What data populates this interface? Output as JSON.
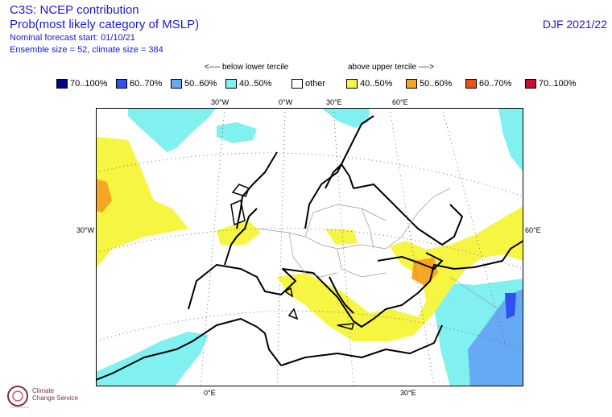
{
  "header": {
    "title_line1": "C3S: NCEP contribution",
    "title_line2": "Prob(most likely category of MSLP)",
    "forecast_start": "Nominal forecast start: 01/10/21",
    "ensemble": "Ensemble size = 52, climate size = 384",
    "season": "DJF 2021/22"
  },
  "tercile_labels": {
    "below": "<---- below lower tercile",
    "above": "above upper tercile ---->"
  },
  "legend": [
    {
      "label": "70..100%",
      "color": "#00008b"
    },
    {
      "label": "60..70%",
      "color": "#3050f0"
    },
    {
      "label": "50..60%",
      "color": "#66aaf5"
    },
    {
      "label": "40..50%",
      "color": "#80f0f0"
    },
    {
      "label": "other",
      "color": "#ffffff"
    },
    {
      "label": "40..50%",
      "color": "#f5f542"
    },
    {
      "label": "50..60%",
      "color": "#f5a623"
    },
    {
      "label": "60..70%",
      "color": "#f05014"
    },
    {
      "label": "70..100%",
      "color": "#c8102e"
    }
  ],
  "grid_labels": {
    "top": [
      "30°W",
      "0°W",
      "30°E",
      "60°E"
    ],
    "bottom": [
      "0°E",
      "30°E"
    ],
    "left": [
      "30°W"
    ],
    "right": [
      "60°E"
    ]
  },
  "logo": {
    "line1": "Climate",
    "line2": "Change Service"
  }
}
